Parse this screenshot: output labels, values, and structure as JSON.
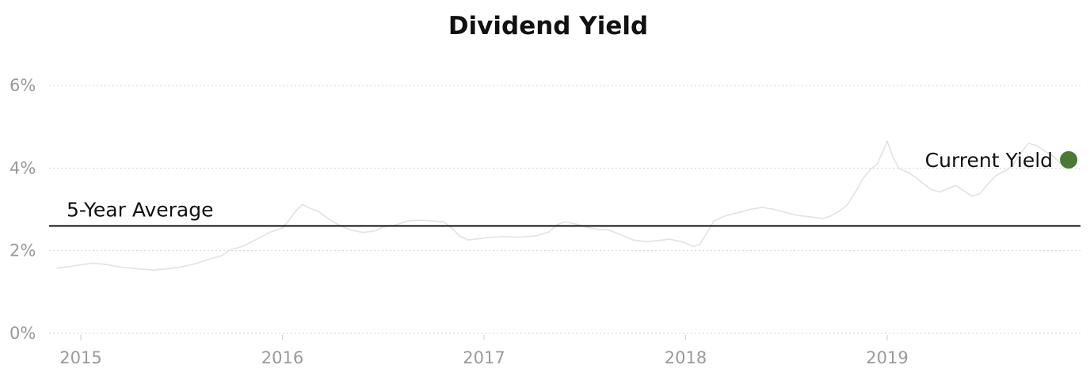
{
  "chart_data": {
    "type": "line",
    "title": "Dividend Yield",
    "xlabel": "",
    "ylabel": "",
    "xlim": [
      2014.88,
      2019.92
    ],
    "ylim": [
      0,
      6
    ],
    "y_ticks": [
      {
        "value": 6,
        "label": "6%"
      },
      {
        "value": 4,
        "label": "4%"
      },
      {
        "value": 2,
        "label": "2%"
      },
      {
        "value": 0,
        "label": "0%"
      }
    ],
    "x_ticks": [
      {
        "value": 2015,
        "label": "2015"
      },
      {
        "value": 2016,
        "label": "2016"
      },
      {
        "value": 2017,
        "label": "2017"
      },
      {
        "value": 2018,
        "label": "2018"
      },
      {
        "value": 2019,
        "label": "2019"
      }
    ],
    "grid": true,
    "series": [
      {
        "color": "#e2e2e2",
        "x": [
          2014.88,
          2014.95,
          2015.0,
          2015.06,
          2015.12,
          2015.2,
          2015.28,
          2015.36,
          2015.45,
          2015.52,
          2015.58,
          2015.64,
          2015.7,
          2015.74,
          2015.8,
          2015.85,
          2015.9,
          2015.94,
          2016.0,
          2016.03,
          2016.07,
          2016.1,
          2016.14,
          2016.18,
          2016.22,
          2016.28,
          2016.34,
          2016.4,
          2016.46,
          2016.5,
          2016.56,
          2016.62,
          2016.68,
          2016.74,
          2016.8,
          2016.84,
          2016.88,
          2016.92,
          2016.96,
          2017.02,
          2017.1,
          2017.18,
          2017.26,
          2017.32,
          2017.36,
          2017.4,
          2017.46,
          2017.52,
          2017.56,
          2017.62,
          2017.68,
          2017.74,
          2017.8,
          2017.86,
          2017.92,
          2017.98,
          2018.04,
          2018.07,
          2018.1,
          2018.14,
          2018.2,
          2018.26,
          2018.32,
          2018.38,
          2018.44,
          2018.5,
          2018.56,
          2018.62,
          2018.68,
          2018.72,
          2018.76,
          2018.8,
          2018.84,
          2018.88,
          2018.92,
          2018.95,
          2018.98,
          2019.0,
          2019.03,
          2019.06,
          2019.1,
          2019.14,
          2019.18,
          2019.22,
          2019.26,
          2019.3,
          2019.34,
          2019.38,
          2019.42,
          2019.46,
          2019.5,
          2019.54,
          2019.58,
          2019.62,
          2019.66,
          2019.7,
          2019.74,
          2019.78,
          2019.82,
          2019.86
        ],
        "values": [
          1.58,
          1.62,
          1.66,
          1.7,
          1.67,
          1.6,
          1.56,
          1.53,
          1.57,
          1.63,
          1.7,
          1.8,
          1.88,
          2.02,
          2.1,
          2.22,
          2.35,
          2.45,
          2.55,
          2.72,
          2.98,
          3.12,
          3.02,
          2.95,
          2.8,
          2.62,
          2.5,
          2.44,
          2.48,
          2.58,
          2.62,
          2.72,
          2.74,
          2.72,
          2.7,
          2.55,
          2.35,
          2.26,
          2.28,
          2.32,
          2.34,
          2.33,
          2.36,
          2.45,
          2.62,
          2.7,
          2.64,
          2.56,
          2.52,
          2.5,
          2.38,
          2.26,
          2.22,
          2.24,
          2.28,
          2.22,
          2.1,
          2.15,
          2.38,
          2.72,
          2.85,
          2.92,
          3.0,
          3.05,
          3.0,
          2.92,
          2.85,
          2.82,
          2.78,
          2.84,
          2.95,
          3.1,
          3.4,
          3.75,
          3.98,
          4.1,
          4.42,
          4.65,
          4.25,
          3.98,
          3.9,
          3.78,
          3.62,
          3.48,
          3.42,
          3.5,
          3.58,
          3.45,
          3.32,
          3.38,
          3.62,
          3.82,
          3.92,
          4.05,
          4.35,
          4.6,
          4.55,
          4.42,
          4.3,
          4.1
        ]
      }
    ],
    "reference_line": {
      "label": "5-Year Average",
      "value": 2.6
    },
    "current_point": {
      "label": "Current Yield",
      "x": 2019.9,
      "value": 4.2,
      "color": "#4a7a35"
    }
  }
}
